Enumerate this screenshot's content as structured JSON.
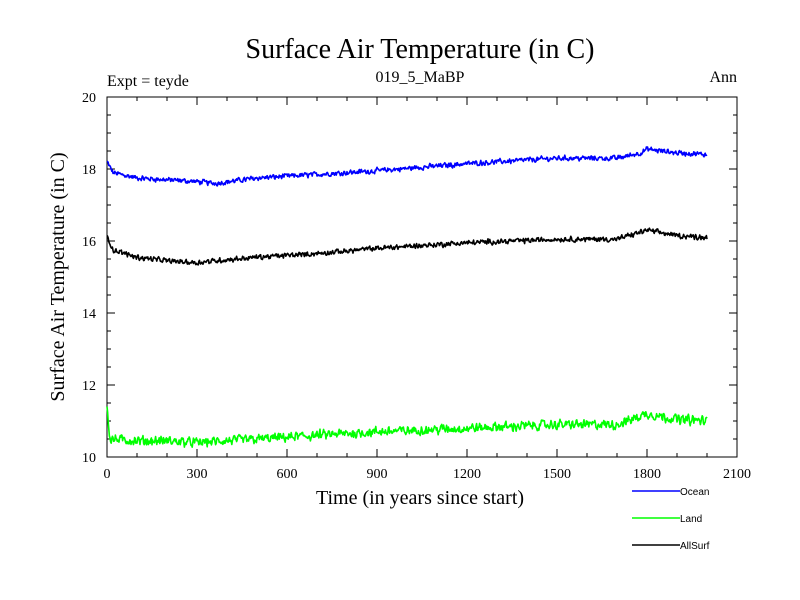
{
  "chart_data": {
    "type": "line",
    "title": "Surface Air Temperature (in C)",
    "subtitle_left": "Expt = teyde",
    "subtitle_center": "019_5_MaBP",
    "subtitle_right": "Ann",
    "xlabel": "Time (in years since start)",
    "ylabel": "Surface Air Temperature (in C)",
    "xlim": [
      0,
      2100
    ],
    "ylim": [
      10,
      20
    ],
    "xticks": [
      "0",
      "300",
      "600",
      "900",
      "1200",
      "1500",
      "1800",
      "2100"
    ],
    "yticks": [
      "10",
      "12",
      "14",
      "16",
      "18",
      "20"
    ],
    "legend_position": "bottom-right",
    "series": [
      {
        "name": "Ocean",
        "color": "#0000ff",
        "x": [
          0,
          20,
          100,
          200,
          300,
          360,
          500,
          700,
          900,
          1200,
          1500,
          1700,
          1780,
          1800,
          1900,
          2000
        ],
        "values": [
          18.2,
          17.9,
          17.75,
          17.7,
          17.65,
          17.6,
          17.75,
          17.85,
          17.95,
          18.15,
          18.3,
          18.3,
          18.45,
          18.55,
          18.45,
          18.4
        ],
        "noise": 0.08
      },
      {
        "name": "Land",
        "color": "#00ff00",
        "x": [
          0,
          10,
          100,
          200,
          300,
          400,
          600,
          900,
          1200,
          1500,
          1700,
          1800,
          1900,
          2000
        ],
        "values": [
          11.4,
          10.5,
          10.45,
          10.45,
          10.4,
          10.45,
          10.55,
          10.7,
          10.8,
          10.9,
          10.9,
          11.2,
          11.05,
          11.0
        ],
        "noise": 0.15
      },
      {
        "name": "AllSurf",
        "color": "#000000",
        "x": [
          0,
          20,
          100,
          200,
          300,
          360,
          500,
          700,
          900,
          1200,
          1500,
          1700,
          1780,
          1800,
          1900,
          2000
        ],
        "values": [
          16.15,
          15.75,
          15.55,
          15.45,
          15.4,
          15.45,
          15.55,
          15.65,
          15.8,
          15.95,
          16.05,
          16.05,
          16.25,
          16.3,
          16.15,
          16.1
        ],
        "noise": 0.08
      }
    ]
  }
}
